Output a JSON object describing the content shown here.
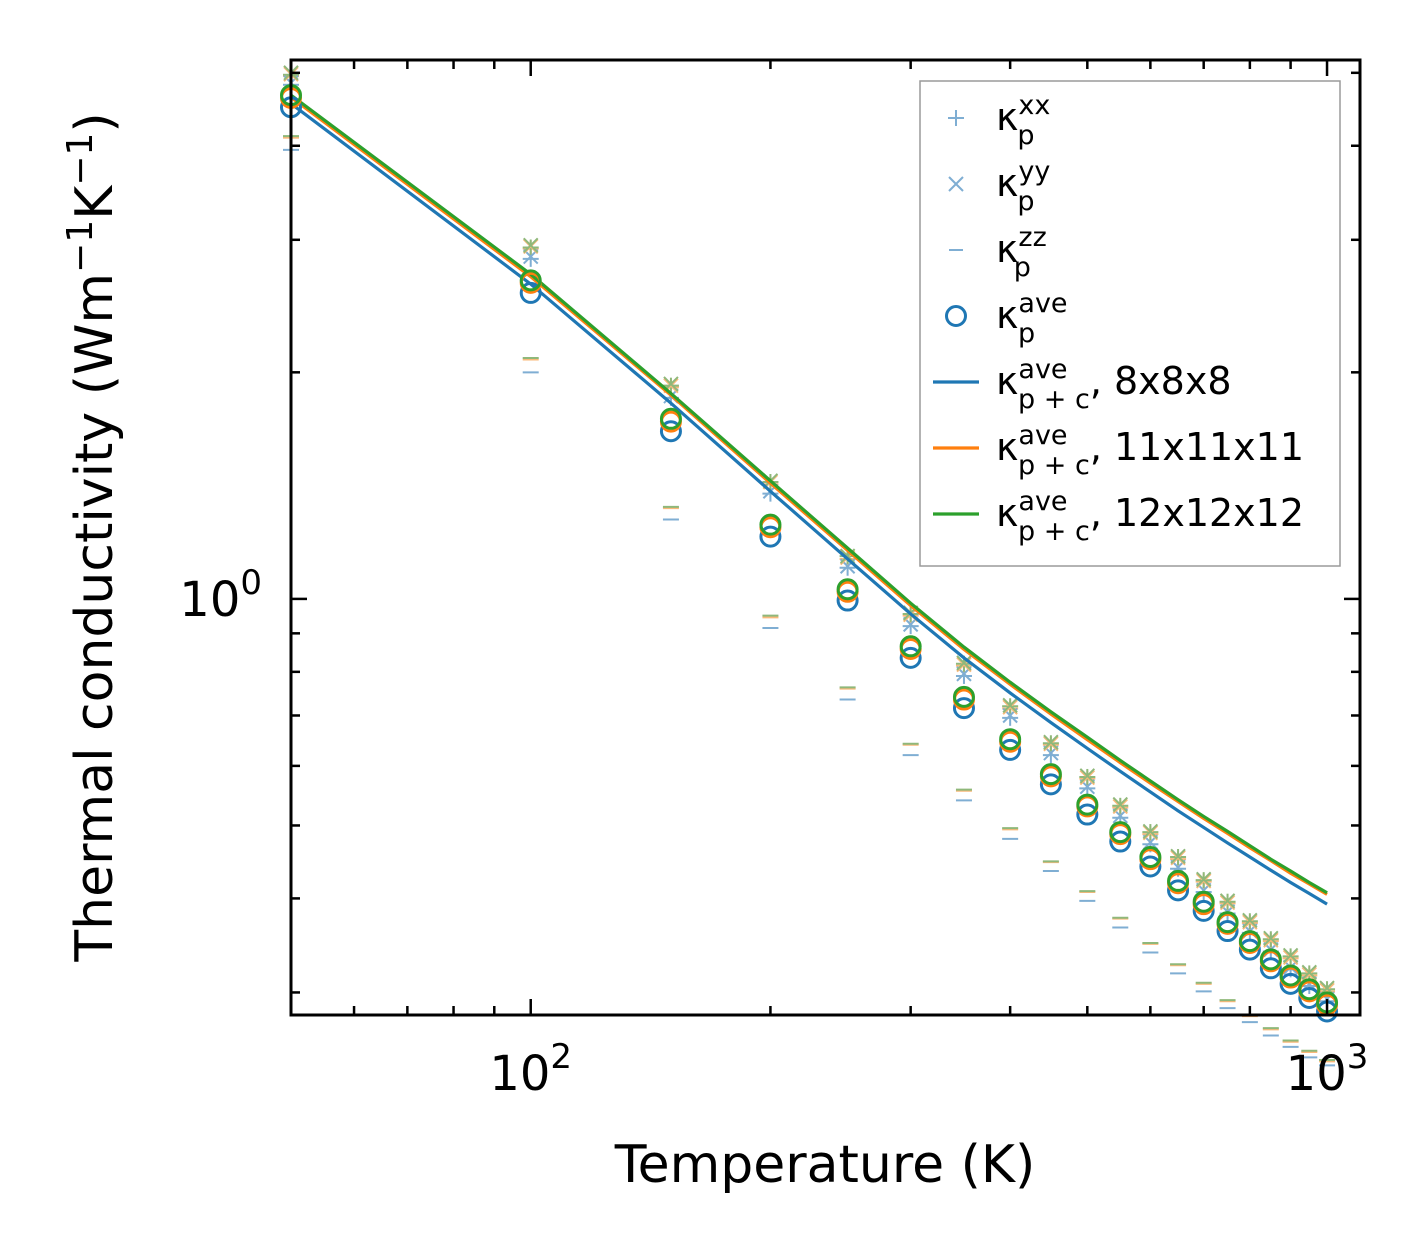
{
  "chart_data": {
    "type": "scatter",
    "xscale": "log",
    "yscale": "log",
    "xlim": [
      50,
      1100
    ],
    "ylim": [
      0.28,
      5.2
    ],
    "xlabel": "Temperature (K)",
    "ylabel": {
      "main": "Thermal conductivity (Wm",
      "exp1": "−1",
      "mid": "K",
      "exp2": "−1",
      "end": ")"
    },
    "xticks": [
      {
        "base": "10",
        "exp": "2"
      },
      {
        "base": "10",
        "exp": "3"
      }
    ],
    "yticks": [
      {
        "base": "10",
        "exp": "0"
      }
    ],
    "x": [
      50,
      100,
      150,
      200,
      250,
      300,
      350,
      400,
      450,
      500,
      550,
      600,
      650,
      700,
      750,
      800,
      850,
      900,
      950,
      1000
    ],
    "kp_xx": {
      "marker": "+",
      "color": "#7faed3",
      "series": [
        {
          "grid": "8x8x8",
          "color": "#7faed3",
          "values": [
            4.82,
            2.83,
            1.85,
            1.38,
            1.1,
            0.92,
            0.79,
            0.695,
            0.62,
            0.56,
            0.512,
            0.472,
            0.438,
            0.408,
            0.382,
            0.36,
            0.34,
            0.322,
            0.306,
            0.292
          ]
        },
        {
          "grid": "11x11x11",
          "color": "#f9b97a",
          "values": [
            4.95,
            2.92,
            1.91,
            1.42,
            1.13,
            0.95,
            0.815,
            0.715,
            0.64,
            0.577,
            0.528,
            0.487,
            0.451,
            0.421,
            0.394,
            0.371,
            0.351,
            0.333,
            0.316,
            0.301
          ]
        },
        {
          "grid": "12x12x12",
          "color": "#8fb87a",
          "values": [
            4.97,
            2.93,
            1.92,
            1.43,
            1.14,
            0.955,
            0.82,
            0.72,
            0.643,
            0.58,
            0.531,
            0.49,
            0.454,
            0.423,
            0.396,
            0.373,
            0.353,
            0.335,
            0.318,
            0.303
          ]
        }
      ]
    },
    "kp_yy": {
      "marker": "x",
      "color": "#7faed3",
      "series": [
        {
          "grid": "8x8x8",
          "color": "#7faed3",
          "values": [
            4.85,
            2.85,
            1.86,
            1.39,
            1.105,
            0.925,
            0.795,
            0.7,
            0.624,
            0.563,
            0.515,
            0.475,
            0.44,
            0.41,
            0.384,
            0.362,
            0.342,
            0.324,
            0.308,
            0.294
          ]
        },
        {
          "grid": "11x11x11",
          "color": "#f9b97a",
          "values": [
            4.98,
            2.94,
            1.92,
            1.43,
            1.135,
            0.953,
            0.818,
            0.718,
            0.642,
            0.579,
            0.53,
            0.489,
            0.453,
            0.422,
            0.395,
            0.372,
            0.352,
            0.334,
            0.317,
            0.302
          ]
        },
        {
          "grid": "12x12x12",
          "color": "#8fb87a",
          "values": [
            5.0,
            2.95,
            1.93,
            1.435,
            1.14,
            0.958,
            0.822,
            0.722,
            0.645,
            0.582,
            0.533,
            0.491,
            0.455,
            0.424,
            0.397,
            0.374,
            0.354,
            0.336,
            0.319,
            0.304
          ]
        }
      ]
    },
    "kp_zz": {
      "marker": "_",
      "color": "#7faed3",
      "series": [
        {
          "grid": "8x8x8",
          "color": "#7faed3",
          "values": [
            3.95,
            2.0,
            1.275,
            0.915,
            0.735,
            0.62,
            0.54,
            0.48,
            0.435,
            0.397,
            0.366,
            0.339,
            0.318,
            0.301,
            0.286,
            0.274,
            0.263,
            0.254,
            0.246,
            0.24
          ]
        },
        {
          "grid": "11x11x11",
          "color": "#f9b97a",
          "values": [
            4.1,
            2.08,
            1.32,
            0.945,
            0.76,
            0.64,
            0.556,
            0.494,
            0.447,
            0.408,
            0.376,
            0.348,
            0.326,
            0.308,
            0.292,
            0.279,
            0.268,
            0.258,
            0.25,
            0.243
          ]
        },
        {
          "grid": "12x12x12",
          "color": "#8fb87a",
          "values": [
            4.12,
            2.09,
            1.325,
            0.95,
            0.763,
            0.642,
            0.558,
            0.496,
            0.448,
            0.409,
            0.377,
            0.349,
            0.327,
            0.309,
            0.293,
            0.28,
            0.269,
            0.259,
            0.251,
            0.244
          ]
        }
      ]
    },
    "kp_ave": {
      "marker": "o",
      "series": [
        {
          "grid": "8x8x8",
          "color": "#1f77b4",
          "values": [
            4.5,
            2.55,
            1.67,
            1.21,
            0.995,
            0.835,
            0.716,
            0.63,
            0.567,
            0.517,
            0.476,
            0.441,
            0.41,
            0.385,
            0.362,
            0.342,
            0.323,
            0.308,
            0.295,
            0.283
          ]
        },
        {
          "grid": "11x11x11",
          "color": "#ff7f0e",
          "values": [
            4.63,
            2.63,
            1.72,
            1.245,
            1.022,
            0.858,
            0.735,
            0.646,
            0.581,
            0.53,
            0.487,
            0.451,
            0.419,
            0.393,
            0.37,
            0.349,
            0.33,
            0.314,
            0.301,
            0.289
          ]
        },
        {
          "grid": "12x12x12",
          "color": "#2ca02c",
          "values": [
            4.67,
            2.65,
            1.735,
            1.255,
            1.03,
            0.865,
            0.741,
            0.651,
            0.585,
            0.533,
            0.49,
            0.454,
            0.422,
            0.396,
            0.372,
            0.351,
            0.332,
            0.316,
            0.303,
            0.291
          ]
        }
      ]
    },
    "kpc_ave": {
      "line": true,
      "x": [
        50,
        100,
        150,
        200,
        250,
        300,
        350,
        400,
        450,
        500,
        550,
        600,
        650,
        700,
        750,
        800,
        850,
        900,
        950,
        1000
      ],
      "series": [
        {
          "grid": "8x8x8",
          "color": "#1f77b4",
          "values": [
            4.55,
            2.62,
            1.82,
            1.39,
            1.13,
            0.955,
            0.835,
            0.75,
            0.685,
            0.633,
            0.59,
            0.554,
            0.523,
            0.497,
            0.474,
            0.454,
            0.436,
            0.42,
            0.406,
            0.393
          ]
        },
        {
          "grid": "11x11x11",
          "color": "#ff7f0e",
          "values": [
            4.64,
            2.68,
            1.865,
            1.425,
            1.16,
            0.98,
            0.857,
            0.77,
            0.703,
            0.65,
            0.606,
            0.569,
            0.538,
            0.511,
            0.488,
            0.467,
            0.449,
            0.432,
            0.418,
            0.405
          ]
        },
        {
          "grid": "12x12x12",
          "color": "#2ca02c",
          "values": [
            4.67,
            2.7,
            1.875,
            1.435,
            1.168,
            0.987,
            0.863,
            0.775,
            0.708,
            0.655,
            0.61,
            0.573,
            0.541,
            0.514,
            0.491,
            0.47,
            0.451,
            0.435,
            0.42,
            0.407
          ]
        }
      ]
    },
    "legend": {
      "placement": "top-right",
      "entries": [
        {
          "symbol": "+",
          "color": "#7faed3",
          "base": "κ",
          "sub": "p",
          "sup": "xx",
          "suffix": ""
        },
        {
          "symbol": "x",
          "color": "#7faed3",
          "base": "κ",
          "sub": "p",
          "sup": "yy",
          "suffix": ""
        },
        {
          "symbol": "_",
          "color": "#7faed3",
          "base": "κ",
          "sub": "p",
          "sup": "zz",
          "suffix": ""
        },
        {
          "symbol": "o",
          "color": "#1f77b4",
          "base": "κ",
          "sub": "p",
          "sup": "ave",
          "suffix": ""
        },
        {
          "symbol": "line",
          "color": "#1f77b4",
          "base": "κ",
          "sub": "p + c",
          "sup": "ave",
          "suffix": ", 8x8x8"
        },
        {
          "symbol": "line",
          "color": "#ff7f0e",
          "base": "κ",
          "sub": "p + c",
          "sup": "ave",
          "suffix": ", 11x11x11"
        },
        {
          "symbol": "line",
          "color": "#2ca02c",
          "base": "κ",
          "sub": "p + c",
          "sup": "ave",
          "suffix": ", 12x12x12"
        }
      ]
    }
  }
}
